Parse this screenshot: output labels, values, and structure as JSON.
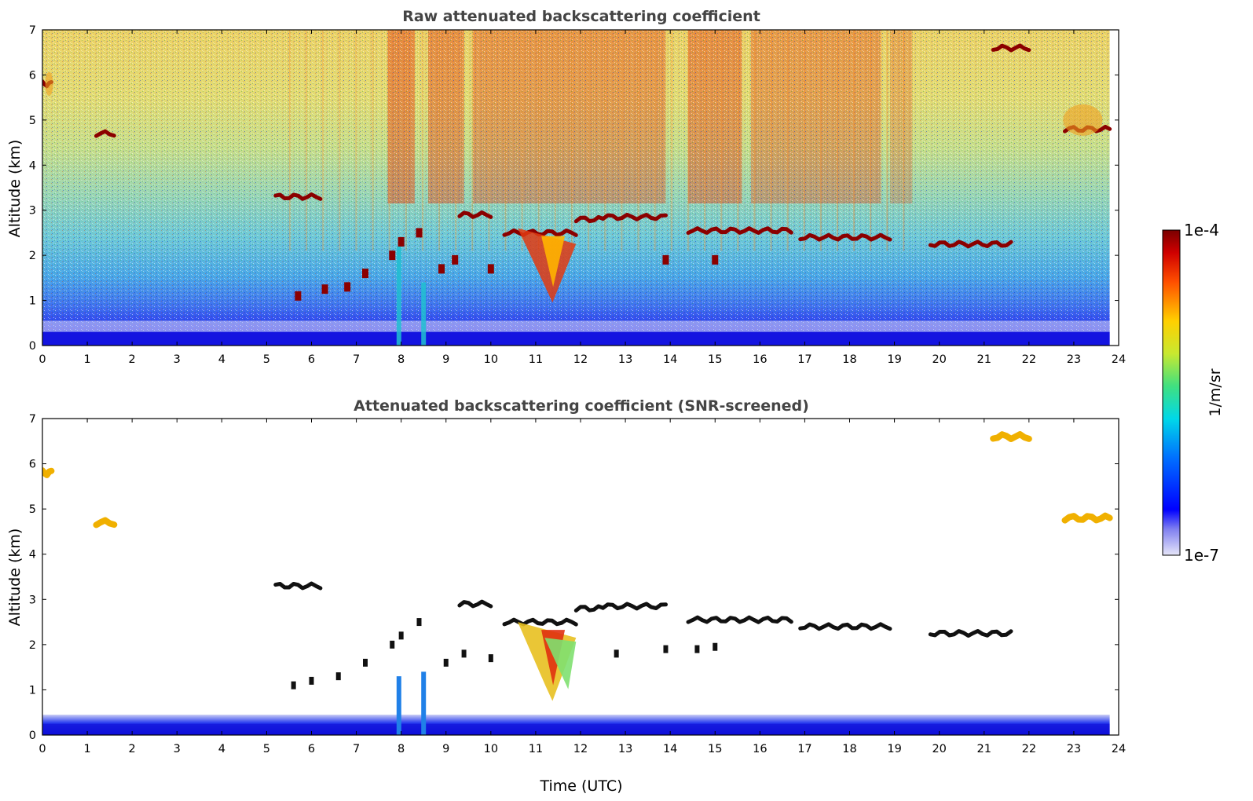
{
  "chart_data": [
    {
      "type": "heatmap",
      "title": "Raw attenuated backscattering coefficient",
      "xlabel": "",
      "ylabel": "Altitude (km)",
      "xlim": [
        0,
        24
      ],
      "ylim": [
        0,
        7
      ],
      "xticks": [
        0,
        1,
        2,
        3,
        4,
        5,
        6,
        7,
        8,
        9,
        10,
        11,
        12,
        13,
        14,
        15,
        16,
        17,
        18,
        19,
        20,
        21,
        22,
        23,
        24
      ],
      "yticks": [
        0,
        1,
        2,
        3,
        4,
        5,
        6,
        7
      ],
      "cloud_layers": [
        {
          "time_start": 5.2,
          "time_end": 6.2,
          "altitude_km": 3.3
        },
        {
          "time_start": 9.3,
          "time_end": 10.0,
          "altitude_km": 2.9
        },
        {
          "time_start": 10.3,
          "time_end": 11.9,
          "altitude_km": 2.5
        },
        {
          "time_start": 11.9,
          "time_end": 12.5,
          "altitude_km": 2.8
        },
        {
          "time_start": 12.5,
          "time_end": 13.9,
          "altitude_km": 2.85
        },
        {
          "time_start": 14.4,
          "time_end": 16.7,
          "altitude_km": 2.55
        },
        {
          "time_start": 16.9,
          "time_end": 18.9,
          "altitude_km": 2.4
        },
        {
          "time_start": 19.8,
          "time_end": 21.6,
          "altitude_km": 2.25
        },
        {
          "time_start": 21.2,
          "time_end": 22.0,
          "altitude_km": 6.6
        },
        {
          "time_start": 0.0,
          "time_end": 0.2,
          "altitude_km": 5.8
        },
        {
          "time_start": 1.2,
          "time_end": 1.6,
          "altitude_km": 4.7
        },
        {
          "time_start": 22.8,
          "time_end": 23.8,
          "altitude_km": 4.8
        }
      ]
    },
    {
      "type": "heatmap",
      "title": "Attenuated backscattering coefficient (SNR-screened)",
      "xlabel": "Time (UTC)",
      "ylabel": "Altitude (km)",
      "xlim": [
        0,
        24
      ],
      "ylim": [
        0,
        7
      ],
      "xticks": [
        0,
        1,
        2,
        3,
        4,
        5,
        6,
        7,
        8,
        9,
        10,
        11,
        12,
        13,
        14,
        15,
        16,
        17,
        18,
        19,
        20,
        21,
        22,
        23,
        24
      ],
      "yticks": [
        0,
        1,
        2,
        3,
        4,
        5,
        6,
        7
      ],
      "boundary_layer_top_km": 0.45
    }
  ],
  "colorbar": {
    "label": "1/m/sr",
    "max_label": "1e-4",
    "min_label": "1e-7",
    "scale": "log",
    "colormap": "jet",
    "range": [
      1e-07,
      0.0001
    ]
  },
  "colors": {
    "title": "#444444",
    "cloud": "#8b0000",
    "cloud_screened": "#111111",
    "boundary_layer": "#1010f0"
  }
}
